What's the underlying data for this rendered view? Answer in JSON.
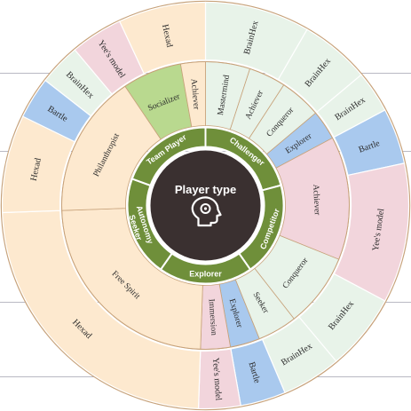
{
  "center": {
    "title": "Player type",
    "icon": "head-gears-icon"
  },
  "colors": {
    "outer_ring_border": "#c7a27a",
    "stroke": "#ffffff",
    "center_bg": "#3a3030",
    "inner_ring": "#6f8f3a",
    "hexad": "#fde9cf",
    "brainhex": "#e8f3e9",
    "yees_model": "#f2d5dc",
    "bartle": "#a9c9ee",
    "socializer_fill": "#b9d98f"
  },
  "inner_ring": [
    {
      "label": "Challenger"
    },
    {
      "label": "Competitor"
    },
    {
      "label": "Explorer"
    },
    {
      "label": "Autonomy Seeker"
    },
    {
      "label": "Team Player"
    }
  ],
  "middle_ring": [
    {
      "label": "Mastermind"
    },
    {
      "label": "Achiever"
    },
    {
      "label": "Conqueror"
    },
    {
      "label": "Explorer"
    },
    {
      "label": "Achiever"
    },
    {
      "label": "Conqueror"
    },
    {
      "label": "Seeker"
    },
    {
      "label": "Explorer"
    },
    {
      "label": "Immersion"
    },
    {
      "label": "Free Spirit"
    },
    {
      "label": "Philanthropist"
    },
    {
      "label": "Socializer"
    },
    {
      "label": "Achiever"
    }
  ],
  "outer_ring": [
    {
      "label": "BrainHex"
    },
    {
      "label": "BrainHex"
    },
    {
      "label": "BrainHex"
    },
    {
      "label": "Bartle"
    },
    {
      "label": "Yee's model"
    },
    {
      "label": "BrainHex"
    },
    {
      "label": "BrainHex"
    },
    {
      "label": "Bartle"
    },
    {
      "label": "Yee's model"
    },
    {
      "label": "Hexad"
    },
    {
      "label": "Hexad"
    },
    {
      "label": "Bartle"
    },
    {
      "label": "BrainHex"
    },
    {
      "label": "Yee's model"
    },
    {
      "label": "Hexad"
    }
  ]
}
